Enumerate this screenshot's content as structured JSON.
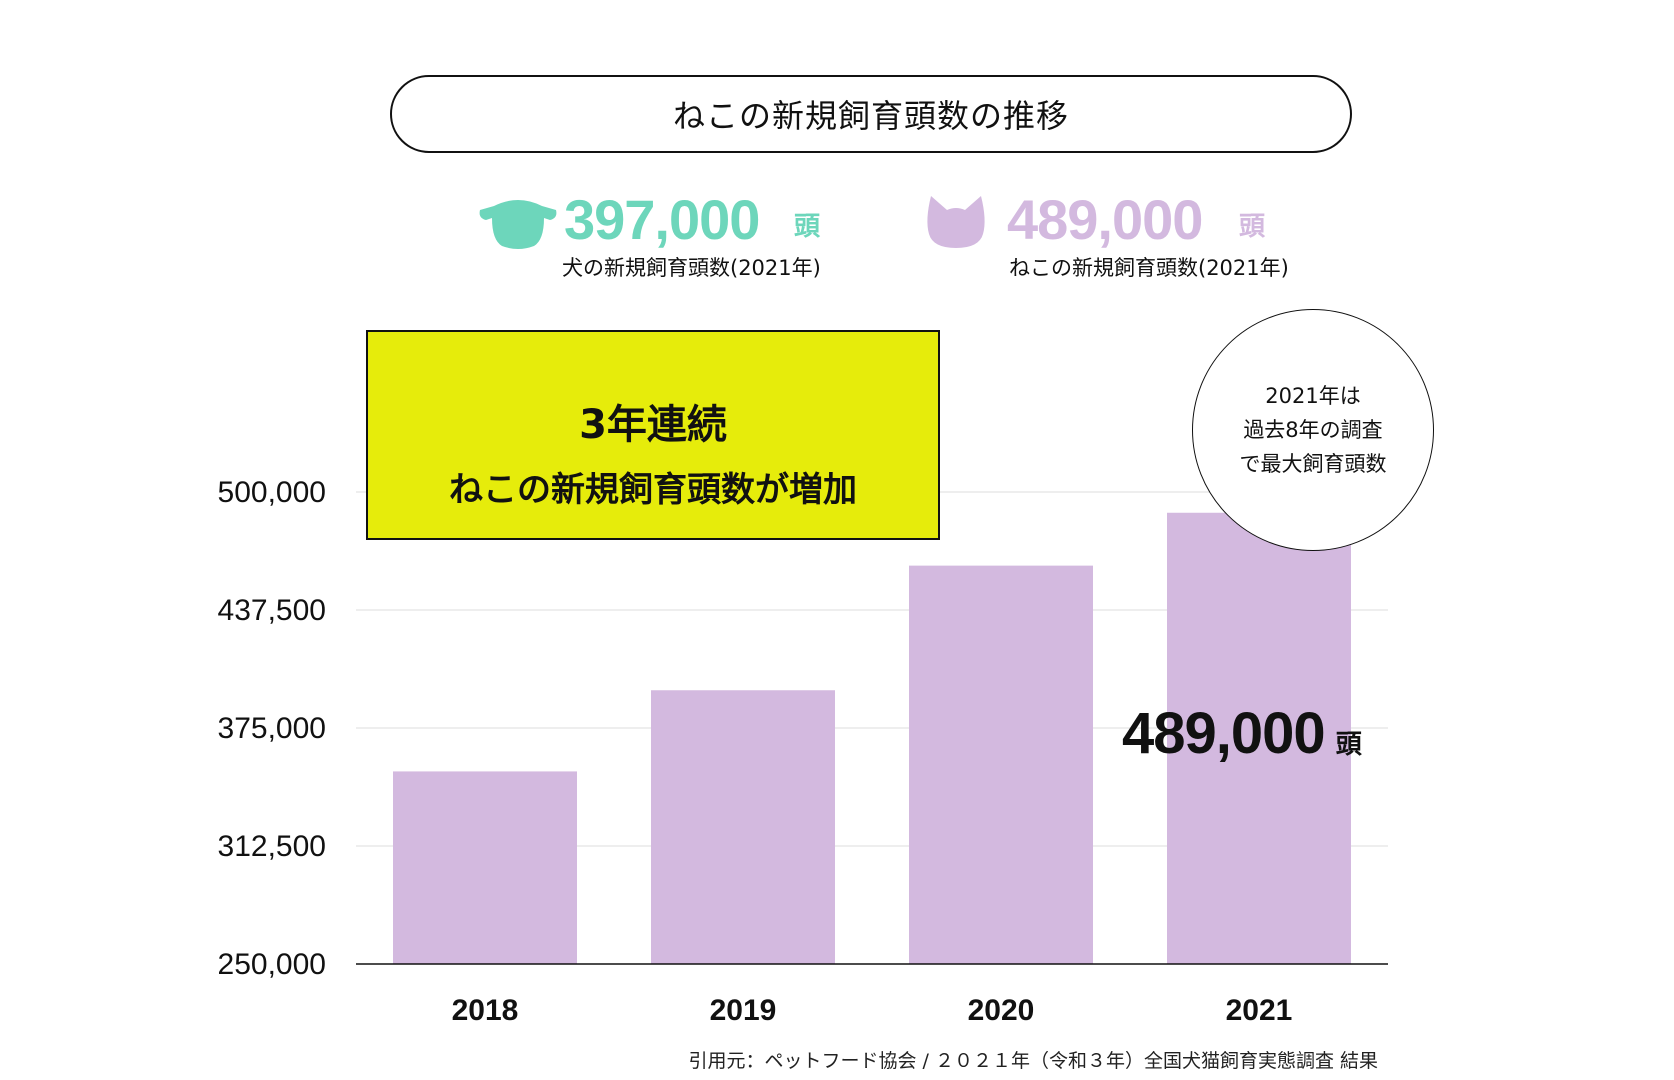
{
  "title": "ねこの新規飼育頭数の推移",
  "colors": {
    "dog": "#6dd6bb",
    "cat": "#d3b9df",
    "highlight": "#e6ec0b",
    "gridline": "#dddddd",
    "axis": "#111111"
  },
  "stats": {
    "dog": {
      "icon": "dog-silhouette-icon",
      "value": "397,000",
      "unit": "頭",
      "caption": "犬の新規飼育頭数(2021年)"
    },
    "cat": {
      "icon": "cat-silhouette-icon",
      "value": "489,000",
      "unit": "頭",
      "caption": "ねこの新規飼育頭数(2021年)"
    }
  },
  "highlight": {
    "line1": "3年連続",
    "line2": "ねこの新規飼育頭数が増加"
  },
  "note": {
    "lines": [
      "2021年は",
      "過去8年の調査",
      "で最大飼育頭数"
    ]
  },
  "bar_label": {
    "value": "489,000",
    "unit": "頭"
  },
  "source": "引用元：ペットフード協会 / ２０２１年（令和３年）全国犬猫飼育実態調査 結果",
  "chart_data": {
    "type": "bar",
    "categories": [
      "2018",
      "2019",
      "2020",
      "2021"
    ],
    "values": [
      352000,
      395000,
      461000,
      489000
    ],
    "ylim": [
      250000,
      500000
    ],
    "yticks": [
      250000,
      312500,
      375000,
      437500,
      500000
    ],
    "ytick_labels": [
      "250,000",
      "312,500",
      "375,000",
      "437,500",
      "500,000"
    ],
    "grid": true
  }
}
